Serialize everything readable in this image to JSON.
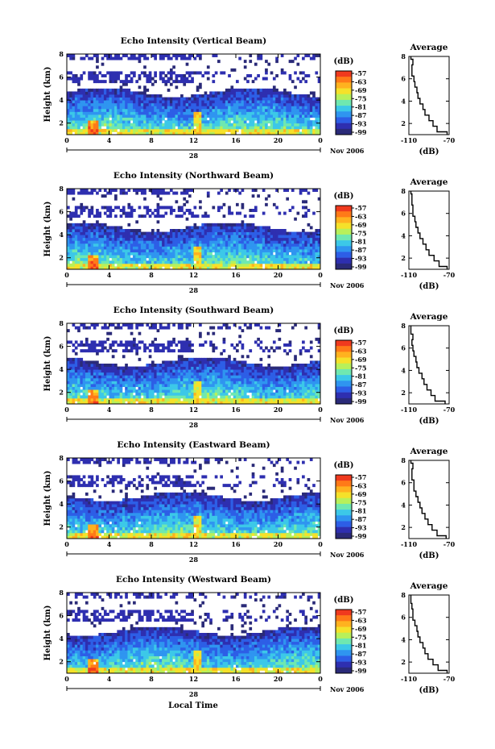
{
  "figure": {
    "x_axis_label": "Local Time",
    "date_label": "28",
    "month_label": "Nov 2006",
    "unit_label": "(dB)",
    "avg_title": "Average",
    "avg_xlabel": "(dB)"
  },
  "colorbar": {
    "ticks": [
      "-57",
      "-63",
      "-69",
      "-75",
      "-81",
      "-87",
      "-93",
      "-99"
    ],
    "colors": [
      "#f03a1e",
      "#ff7a18",
      "#ffb21f",
      "#f5e12a",
      "#b8f05a",
      "#6fe8b0",
      "#3cc8e8",
      "#2f95f0",
      "#2d5ee6",
      "#2e2fb0",
      "#2a2a78"
    ]
  },
  "chart_data": [
    {
      "type": "heatmap",
      "title": "Echo Intensity (Vertical Beam)",
      "ylabel": "Height (km)",
      "xlabel": "Local Time",
      "x_ticks": [
        "0",
        "4",
        "8",
        "12",
        "16",
        "20",
        "0"
      ],
      "y_ticks": [
        "2",
        "4",
        "6",
        "8"
      ],
      "xlim": [
        0,
        24
      ],
      "ylim": [
        1,
        8
      ],
      "colorbar_range_db": [
        -99,
        -57
      ],
      "average_profile": {
        "xlim_db": [
          -110,
          -70
        ],
        "x_ticks": [
          "-110",
          "-70"
        ],
        "y_ticks": [
          "2",
          "4",
          "6",
          "8"
        ],
        "height_km": [
          1.0,
          1.5,
          2.0,
          2.5,
          3.0,
          3.5,
          4.0,
          4.5,
          5.0,
          5.5,
          6.0,
          6.5,
          7.0,
          7.5,
          8.0
        ],
        "intensity_db": [
          -72,
          -82,
          -86,
          -90,
          -94,
          -96,
          -99,
          -101,
          -102,
          -104,
          -105,
          -107,
          -107,
          -106,
          -108
        ]
      }
    },
    {
      "type": "heatmap",
      "title": "Echo Intensity (Northward Beam)",
      "ylabel": "Height (km)",
      "xlabel": "Local Time",
      "x_ticks": [
        "0",
        "4",
        "8",
        "12",
        "16",
        "20",
        "0"
      ],
      "y_ticks": [
        "2",
        "4",
        "6",
        "8"
      ],
      "xlim": [
        0,
        24
      ],
      "ylim": [
        1,
        8
      ],
      "colorbar_range_db": [
        -99,
        -57
      ],
      "average_profile": {
        "xlim_db": [
          -110,
          -70
        ],
        "x_ticks": [
          "-110",
          "-70"
        ],
        "y_ticks": [
          "2",
          "4",
          "6",
          "8"
        ],
        "height_km": [
          1.0,
          1.5,
          2.0,
          2.5,
          3.0,
          3.5,
          4.0,
          4.5,
          5.0,
          5.5,
          6.0,
          6.5,
          7.0,
          7.5,
          8.0
        ],
        "intensity_db": [
          -72,
          -80,
          -85,
          -90,
          -93,
          -96,
          -99,
          -101,
          -103,
          -104,
          -106,
          -106,
          -107,
          -107,
          -108
        ]
      }
    },
    {
      "type": "heatmap",
      "title": "Echo Intensity (Southward Beam)",
      "ylabel": "Height (km)",
      "xlabel": "Local Time",
      "x_ticks": [
        "0",
        "4",
        "8",
        "12",
        "16",
        "20",
        "0"
      ],
      "y_ticks": [
        "2",
        "4",
        "6",
        "8"
      ],
      "xlim": [
        0,
        24
      ],
      "ylim": [
        1,
        8
      ],
      "colorbar_range_db": [
        -99,
        -57
      ],
      "average_profile": {
        "xlim_db": [
          -110,
          -70
        ],
        "x_ticks": [
          "-110",
          "-70"
        ],
        "y_ticks": [
          "2",
          "4",
          "6",
          "8"
        ],
        "height_km": [
          1.0,
          1.5,
          2.0,
          2.5,
          3.0,
          3.5,
          4.0,
          4.5,
          5.0,
          5.5,
          6.0,
          6.5,
          7.0,
          7.5,
          8.0
        ],
        "intensity_db": [
          -74,
          -84,
          -88,
          -92,
          -95,
          -97,
          -100,
          -102,
          -103,
          -105,
          -106,
          -107,
          -106,
          -108,
          -108
        ]
      }
    },
    {
      "type": "heatmap",
      "title": "Echo Intensity (Eastward Beam)",
      "ylabel": "Height (km)",
      "xlabel": "Local Time",
      "x_ticks": [
        "0",
        "4",
        "8",
        "12",
        "16",
        "20",
        "0"
      ],
      "y_ticks": [
        "2",
        "4",
        "6",
        "8"
      ],
      "xlim": [
        0,
        24
      ],
      "ylim": [
        1,
        8
      ],
      "colorbar_range_db": [
        -99,
        -57
      ],
      "average_profile": {
        "xlim_db": [
          -110,
          -70
        ],
        "x_ticks": [
          "-110",
          "-70"
        ],
        "y_ticks": [
          "2",
          "4",
          "6",
          "8"
        ],
        "height_km": [
          1.0,
          1.5,
          2.0,
          2.5,
          3.0,
          3.5,
          4.0,
          4.5,
          5.0,
          5.5,
          6.0,
          6.5,
          7.0,
          7.5,
          8.0
        ],
        "intensity_db": [
          -73,
          -82,
          -87,
          -91,
          -94,
          -97,
          -99,
          -101,
          -103,
          -105,
          -105,
          -107,
          -107,
          -106,
          -108
        ]
      }
    },
    {
      "type": "heatmap",
      "title": "Echo Intensity (Westward Beam)",
      "ylabel": "Height (km)",
      "xlabel": "Local Time",
      "x_ticks": [
        "0",
        "4",
        "8",
        "12",
        "16",
        "20",
        "0"
      ],
      "y_ticks": [
        "2",
        "4",
        "6",
        "8"
      ],
      "xlim": [
        0,
        24
      ],
      "ylim": [
        1,
        8
      ],
      "colorbar_range_db": [
        -99,
        -57
      ],
      "average_profile": {
        "xlim_db": [
          -110,
          -70
        ],
        "x_ticks": [
          "-110",
          "-70"
        ],
        "y_ticks": [
          "2",
          "4",
          "6",
          "8"
        ],
        "height_km": [
          1.0,
          1.5,
          2.0,
          2.5,
          3.0,
          3.5,
          4.0,
          4.5,
          5.0,
          5.5,
          6.0,
          6.5,
          7.0,
          7.5,
          8.0
        ],
        "intensity_db": [
          -72,
          -81,
          -86,
          -91,
          -94,
          -96,
          -99,
          -101,
          -102,
          -104,
          -106,
          -106,
          -107,
          -108,
          -108
        ]
      }
    }
  ]
}
